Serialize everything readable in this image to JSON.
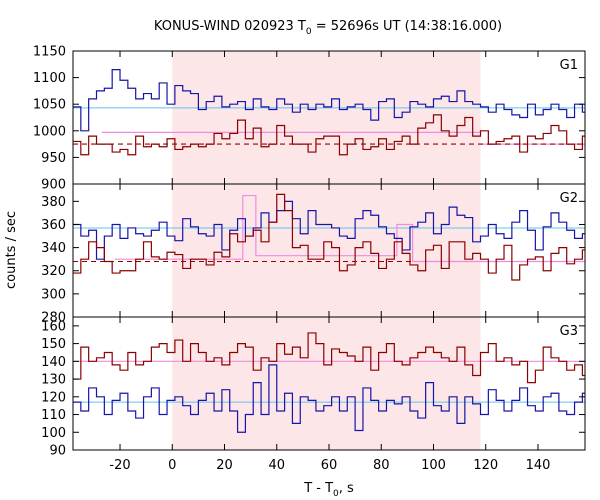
{
  "chart_data": {
    "type": "line",
    "title": {
      "prefix": "KONUS-WIND 020923 T",
      "sub": "0",
      "suffix": " = 52696s UT (14:38:16.000)"
    },
    "xlabel": {
      "prefix": "T - T",
      "sub": "0",
      "suffix": ", s"
    },
    "ylabel": "counts / sec",
    "xlim": [
      -38,
      158
    ],
    "x_ticks": [
      -20,
      0,
      20,
      40,
      60,
      80,
      100,
      120,
      140
    ],
    "x_tick_labels": [
      "-20",
      "0",
      "20",
      "40",
      "60",
      "80",
      "100",
      "120",
      "140"
    ],
    "shaded_interval": [
      0,
      118
    ],
    "colors": {
      "shade": "#fde6e8",
      "blue_series": "#1515a8",
      "red_series": "#8b0000",
      "cyan_level": "#63c3ea",
      "pink_level": "#ef8ce0",
      "red_dashed": "#9b0000"
    },
    "panels": [
      {
        "label": "G1",
        "ylim": [
          900,
          1150
        ],
        "y_ticks": [
          900,
          950,
          1000,
          1050,
          1100,
          1150
        ],
        "y_tick_labels": [
          "900",
          "950",
          "1000",
          "1050",
          "1100",
          "1150"
        ],
        "levels": [
          {
            "style": "cyan",
            "y": 1043,
            "x_from": -38,
            "x_to": 158
          },
          {
            "style": "pink",
            "y": 997,
            "x_from": -27,
            "x_to": 118
          },
          {
            "style": "pink",
            "y": 975,
            "x_from": 118,
            "x_to": 158
          },
          {
            "style": "reddash",
            "y": 975,
            "x_from": -38,
            "x_to": 158
          }
        ],
        "series": [
          {
            "style": "blue",
            "x_start": -38,
            "dt": 3,
            "values": [
              1045,
              1000,
              1060,
              1075,
              1080,
              1115,
              1095,
              1080,
              1060,
              1070,
              1060,
              1090,
              1050,
              1085,
              1075,
              1070,
              1040,
              1055,
              1065,
              1045,
              1050,
              1055,
              1040,
              1060,
              1045,
              1040,
              1060,
              1050,
              1035,
              1050,
              1040,
              1050,
              1045,
              1060,
              1040,
              1045,
              1050,
              1040,
              1020,
              1055,
              1060,
              1025,
              1035,
              1055,
              1050,
              1045,
              1060,
              1065,
              1055,
              1075,
              1055,
              1050,
              1045,
              1035,
              1050,
              1040,
              1030,
              1025,
              1050,
              1030,
              1040,
              1050,
              1040,
              1025,
              1050,
              1035,
              1025,
              1035
            ]
          },
          {
            "style": "red",
            "x_start": -38,
            "dt": 3,
            "values": [
              980,
              955,
              990,
              975,
              975,
              960,
              965,
              955,
              990,
              970,
              975,
              970,
              985,
              965,
              970,
              975,
              970,
              975,
              995,
              985,
              995,
              1020,
              985,
              1005,
              970,
              975,
              1010,
              990,
              975,
              975,
              960,
              985,
              990,
              990,
              955,
              975,
              985,
              965,
              970,
              985,
              965,
              980,
              990,
              975,
              1005,
              1015,
              1030,
              1000,
              990,
              1010,
              1025,
              990,
              1000,
              975,
              980,
              985,
              990,
              960,
              990,
              985,
              995,
              1010,
              1000,
              975,
              965,
              990,
              965,
              945
            ]
          }
        ]
      },
      {
        "label": "G2",
        "ylim": [
          280,
          395
        ],
        "y_ticks": [
          280,
          300,
          320,
          340,
          360,
          380
        ],
        "y_tick_labels": [
          "280",
          "300",
          "320",
          "340",
          "360",
          "380"
        ],
        "levels": [
          {
            "style": "cyan",
            "y": 357,
            "x_from": -38,
            "x_to": 158
          },
          {
            "style": "reddash",
            "y": 328,
            "x_from": -38,
            "x_to": 158
          },
          {
            "style": "pinkstep",
            "x": [
              -22,
              27,
              27,
              32,
              32,
              86,
              86,
              92,
              92,
              158
            ],
            "y": [
              330,
              330,
              385,
              385,
              333,
              333,
              360,
              360,
              328,
              328
            ]
          }
        ],
        "series": [
          {
            "style": "blue",
            "x_start": -38,
            "dt": 3,
            "values": [
              360,
              350,
              355,
              330,
              350,
              360,
              348,
              357,
              352,
              350,
              355,
              362,
              350,
              346,
              365,
              358,
              352,
              350,
              360,
              338,
              355,
              365,
              350,
              357,
              370,
              362,
              372,
              380,
              365,
              352,
              372,
              360,
              360,
              357,
              350,
              348,
              365,
              372,
              368,
              358,
              352,
              348,
              338,
              358,
              362,
              370,
              352,
              360,
              375,
              368,
              366,
              345,
              350,
              360,
              352,
              348,
              362,
              372,
              355,
              338,
              358,
              370,
              362,
              355,
              348,
              352,
              345,
              352
            ]
          },
          {
            "style": "red",
            "x_start": -38,
            "dt": 3,
            "values": [
              318,
              330,
              345,
              340,
              328,
              318,
              320,
              320,
              330,
              345,
              332,
              330,
              336,
              334,
              322,
              330,
              330,
              325,
              336,
              332,
              352,
              345,
              350,
              355,
              345,
              362,
              386,
              372,
              340,
              342,
              330,
              330,
              345,
              340,
              320,
              325,
              340,
              345,
              335,
              322,
              330,
              345,
              335,
              325,
              320,
              338,
              342,
              322,
              345,
              345,
              330,
              335,
              330,
              318,
              330,
              342,
              312,
              325,
              330,
              332,
              320,
              335,
              340,
              326,
              330,
              338,
              322,
              340
            ]
          }
        ]
      },
      {
        "label": "G3",
        "ylim": [
          90,
          165
        ],
        "y_ticks": [
          90,
          100,
          110,
          120,
          130,
          140,
          150,
          160
        ],
        "y_tick_labels": [
          "90",
          "100",
          "110",
          "120",
          "130",
          "140",
          "150",
          "160"
        ],
        "levels": [
          {
            "style": "cyan",
            "y": 117,
            "x_from": -38,
            "x_to": 158
          },
          {
            "style": "pink",
            "y": 140,
            "x_from": -38,
            "x_to": 158
          }
        ],
        "series": [
          {
            "style": "blue",
            "x_start": -38,
            "dt": 3,
            "values": [
              117,
              112,
              125,
              120,
              110,
              118,
              122,
              112,
              108,
              120,
              125,
              110,
              118,
              120,
              115,
              110,
              118,
              122,
              112,
              124,
              112,
              100,
              110,
              128,
              110,
              138,
              112,
              122,
              105,
              120,
              118,
              112,
              115,
              120,
              112,
              120,
              101,
              125,
              118,
              112,
              118,
              116,
              120,
              112,
              108,
              128,
              115,
              112,
              120,
              105,
              120,
              116,
              110,
              124,
              118,
              112,
              118,
              125,
              115,
              112,
              120,
              122,
              112,
              110,
              117,
              122,
              114,
              122
            ]
          },
          {
            "style": "red",
            "x_start": -38,
            "dt": 3,
            "values": [
              130,
              148,
              140,
              142,
              145,
              138,
              135,
              145,
              138,
              140,
              148,
              150,
              145,
              152,
              140,
              150,
              145,
              140,
              142,
              138,
              145,
              150,
              148,
              135,
              142,
              140,
              150,
              144,
              148,
              142,
              156,
              150,
              138,
              147,
              145,
              143,
              140,
              148,
              135,
              145,
              150,
              140,
              138,
              142,
              145,
              148,
              145,
              142,
              140,
              148,
              138,
              132,
              145,
              150,
              140,
              142,
              138,
              140,
              128,
              135,
              148,
              142,
              140,
              135,
              138,
              132,
              150,
              158
            ]
          }
        ]
      }
    ]
  }
}
